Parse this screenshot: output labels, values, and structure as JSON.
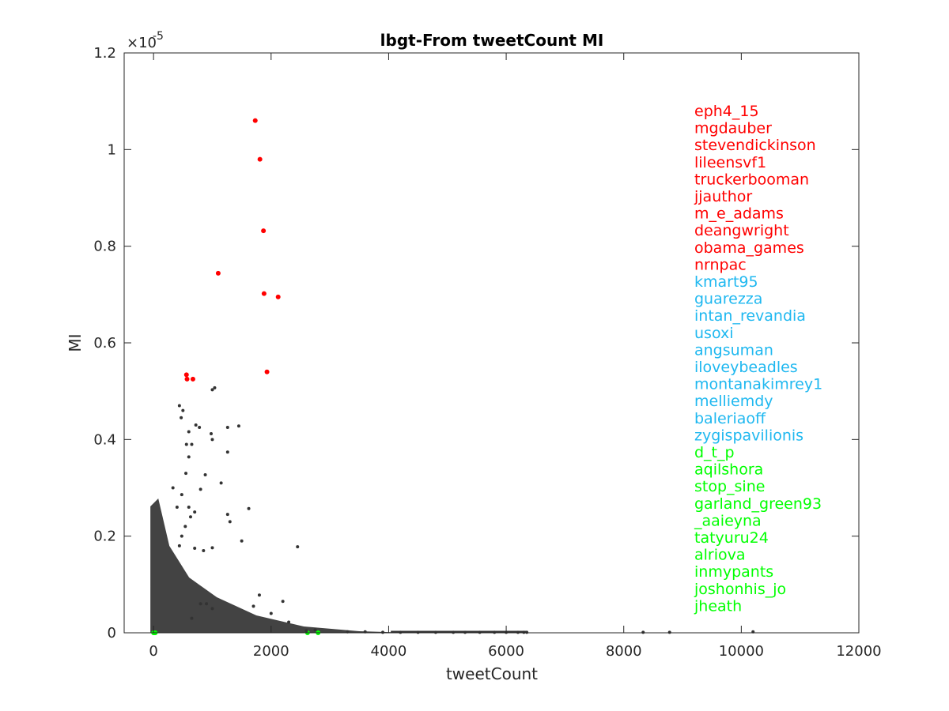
{
  "chart_data": {
    "type": "scatter",
    "title": "lbgt-From tweetCount MI",
    "xlabel": "tweetCount",
    "ylabel": "MI",
    "xlim": [
      -500,
      12000
    ],
    "ylim": [
      0,
      1.2
    ],
    "y_exponent_label": "×10",
    "y_exponent_power": "-5",
    "x_ticks": [
      0,
      2000,
      4000,
      6000,
      8000,
      10000,
      12000
    ],
    "x_tick_labels": [
      "0",
      "2000",
      "4000",
      "6000",
      "8000",
      "10000",
      "12000"
    ],
    "y_ticks": [
      0,
      0.2,
      0.4,
      0.6,
      0.8,
      1,
      1.2
    ],
    "y_tick_labels": [
      "0",
      "0.2",
      "0.4",
      "0.6",
      "0.8",
      "1",
      "1.2"
    ],
    "grid": false,
    "colors": {
      "top": "#ff0000",
      "mid": "#1fb8f0",
      "bottom": "#00ff00",
      "other": "#333333"
    },
    "series": [
      {
        "group": "top",
        "x": [
          1730,
          1810,
          1870,
          1100,
          1880,
          2120,
          1930,
          560,
          570,
          670
        ],
        "y": [
          1.06,
          0.98,
          0.832,
          0.744,
          0.702,
          0.695,
          0.54,
          0.534,
          0.525,
          0.525
        ]
      },
      {
        "group": "bottom",
        "x": [
          0,
          10,
          20,
          30,
          2620,
          2800
        ],
        "y": [
          0,
          0,
          0,
          0,
          0,
          0
        ]
      },
      {
        "group": "other",
        "x": [
          1000,
          1040,
          440,
          470,
          500,
          600,
          650,
          720,
          780,
          1260,
          1450,
          1260,
          980,
          1150,
          880,
          1000,
          800,
          560,
          600,
          550,
          480,
          330,
          400,
          600,
          700,
          630,
          540,
          480,
          440,
          700,
          850,
          1000,
          1260,
          1620,
          1300,
          1500,
          2450,
          1800,
          2000,
          2300,
          1700,
          2200,
          1000,
          900,
          800,
          650,
          2600,
          2750,
          3300,
          3600,
          3900,
          4200,
          4500,
          4800,
          5100,
          5300,
          5550,
          5800,
          6000,
          6200,
          6300,
          6350,
          8330,
          8780,
          10200
        ],
        "y": [
          0.503,
          0.507,
          0.47,
          0.445,
          0.46,
          0.416,
          0.39,
          0.43,
          0.425,
          0.425,
          0.428,
          0.374,
          0.412,
          0.31,
          0.327,
          0.4,
          0.297,
          0.39,
          0.364,
          0.33,
          0.286,
          0.3,
          0.26,
          0.26,
          0.25,
          0.24,
          0.22,
          0.2,
          0.18,
          0.175,
          0.17,
          0.176,
          0.245,
          0.257,
          0.23,
          0.19,
          0.178,
          0.078,
          0.04,
          0.022,
          0.055,
          0.065,
          0.05,
          0.06,
          0.06,
          0.03,
          0.004,
          0.006,
          0.002,
          0.002,
          0.001,
          0.001,
          0.001,
          0.001,
          0.001,
          0.001,
          0.001,
          0.001,
          0.001,
          0.001,
          0.001,
          0.001,
          0.001,
          0.001,
          0.002
        ]
      }
    ],
    "annotations": [
      {
        "text": "eph4_15",
        "group": "top"
      },
      {
        "text": "mgdauber",
        "group": "top"
      },
      {
        "text": "stevendickinson",
        "group": "top"
      },
      {
        "text": "lileensvf1",
        "group": "top"
      },
      {
        "text": "truckerbooman",
        "group": "top"
      },
      {
        "text": "jjauthor",
        "group": "top"
      },
      {
        "text": "m_e_adams",
        "group": "top"
      },
      {
        "text": "deangwright",
        "group": "top"
      },
      {
        "text": "obama_games",
        "group": "top"
      },
      {
        "text": "nrnpac",
        "group": "top"
      },
      {
        "text": "kmart95",
        "group": "mid"
      },
      {
        "text": "guarezza",
        "group": "mid"
      },
      {
        "text": "intan_revandia",
        "group": "mid"
      },
      {
        "text": "usoxi",
        "group": "mid"
      },
      {
        "text": "angsuman",
        "group": "mid"
      },
      {
        "text": "iloveybeadles",
        "group": "mid"
      },
      {
        "text": "montanakimrey1",
        "group": "mid"
      },
      {
        "text": "melliemdy",
        "group": "mid"
      },
      {
        "text": "baleriaoff",
        "group": "mid"
      },
      {
        "text": "zygispavilionis",
        "group": "mid"
      },
      {
        "text": "d_t_p",
        "group": "bottom"
      },
      {
        "text": "aqilshora",
        "group": "bottom"
      },
      {
        "text": "stop_sine",
        "group": "bottom"
      },
      {
        "text": "garland_green93",
        "group": "bottom"
      },
      {
        "text": "_aaieyna",
        "group": "bottom"
      },
      {
        "text": "tatyuru24",
        "group": "bottom"
      },
      {
        "text": "alriova",
        "group": "bottom"
      },
      {
        "text": "inmypants",
        "group": "bottom"
      },
      {
        "text": "joshonhis_jo",
        "group": "bottom"
      },
      {
        "text": "jheath",
        "group": "bottom"
      }
    ]
  }
}
